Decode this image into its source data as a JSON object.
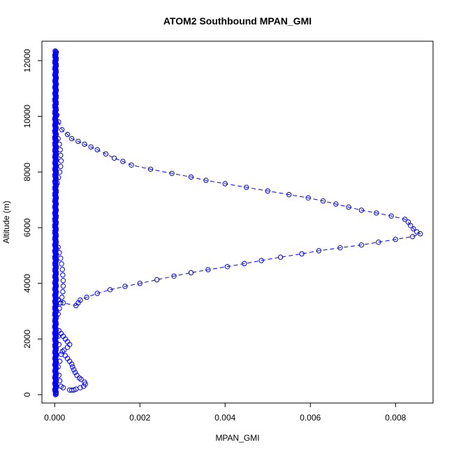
{
  "chart_data": {
    "type": "scatter",
    "title": "ATOM2 Southbound MPAN_GMI",
    "xlabel": "MPAN_GMI",
    "ylabel": "Altitude (m)",
    "xlim": [
      -0.0003,
      0.00888
    ],
    "ylim": [
      -300,
      12700
    ],
    "x_ticks": [
      0.0,
      0.002,
      0.004,
      0.006,
      0.008
    ],
    "x_tick_labels": [
      "0.000",
      "0.002",
      "0.004",
      "0.006",
      "0.008"
    ],
    "y_ticks": [
      0,
      2000,
      4000,
      6000,
      8000,
      10000,
      12000
    ],
    "y_tick_labels": [
      "0",
      "2000",
      "4000",
      "6000",
      "8000",
      "10000",
      "12000"
    ],
    "grid": false,
    "marker": "open-circle",
    "color": "#0000ff",
    "series": [
      {
        "name": "",
        "profile": "spike",
        "connected": true,
        "points": [
          [
            5e-05,
            10050
          ],
          [
            9e-05,
            9800
          ],
          [
            0.00017,
            9520
          ],
          [
            0.0003,
            9350
          ],
          [
            0.0004,
            9200
          ],
          [
            0.00055,
            9100
          ],
          [
            0.0007,
            9000
          ],
          [
            0.00085,
            8900
          ],
          [
            0.001,
            8800
          ],
          [
            0.0012,
            8650
          ],
          [
            0.0014,
            8500
          ],
          [
            0.0016,
            8380
          ],
          [
            0.0018,
            8250
          ],
          [
            0.00225,
            8100
          ],
          [
            0.00275,
            7950
          ],
          [
            0.0032,
            7820
          ],
          [
            0.00355,
            7700
          ],
          [
            0.004,
            7580
          ],
          [
            0.0045,
            7450
          ],
          [
            0.005,
            7320
          ],
          [
            0.0055,
            7190
          ],
          [
            0.00595,
            7070
          ],
          [
            0.0063,
            6960
          ],
          [
            0.0066,
            6850
          ],
          [
            0.0069,
            6740
          ],
          [
            0.0072,
            6630
          ],
          [
            0.00755,
            6530
          ],
          [
            0.0079,
            6420
          ],
          [
            0.00822,
            6300
          ],
          [
            0.0083,
            6200
          ],
          [
            0.00835,
            6080
          ],
          [
            0.00842,
            5960
          ],
          [
            0.0085,
            5850
          ],
          [
            0.00858,
            5780
          ],
          [
            0.0084,
            5680
          ],
          [
            0.008,
            5580
          ],
          [
            0.0076,
            5480
          ],
          [
            0.0072,
            5380
          ],
          [
            0.0067,
            5280
          ],
          [
            0.0062,
            5170
          ],
          [
            0.0058,
            5060
          ],
          [
            0.0053,
            4940
          ],
          [
            0.00485,
            4820
          ],
          [
            0.00445,
            4710
          ],
          [
            0.00405,
            4600
          ],
          [
            0.0036,
            4490
          ],
          [
            0.0032,
            4380
          ],
          [
            0.0028,
            4260
          ],
          [
            0.0024,
            4130
          ],
          [
            0.002,
            4000
          ],
          [
            0.00165,
            3890
          ],
          [
            0.0013,
            3770
          ],
          [
            0.001,
            3640
          ],
          [
            0.00075,
            3500
          ],
          [
            0.0006,
            3400
          ],
          [
            0.00055,
            3300
          ],
          [
            0.0005,
            3200
          ],
          [
            0.0002,
            3300
          ],
          [
            8e-05,
            3400
          ]
        ]
      },
      {
        "name": "",
        "profile": "near-zero-column",
        "connected": false,
        "x_range": [
          0.0,
          4e-05
        ],
        "y_range": [
          0,
          12350
        ]
      },
      {
        "name": "",
        "profile": "bulge",
        "connected": false,
        "points": [
          [
            8e-05,
            9200
          ],
          [
            0.00011,
            9000
          ],
          [
            0.00013,
            8800
          ],
          [
            0.00014,
            8600
          ],
          [
            0.00015,
            8400
          ],
          [
            0.00014,
            8200
          ],
          [
            0.00012,
            8000
          ],
          [
            9e-05,
            7800
          ],
          [
            6e-05,
            7600
          ],
          [
            8e-05,
            5300
          ],
          [
            0.00011,
            5100
          ],
          [
            0.00014,
            4900
          ],
          [
            0.00016,
            4700
          ],
          [
            0.00018,
            4500
          ],
          [
            0.00019,
            4300
          ],
          [
            0.0002,
            4100
          ],
          [
            0.0002,
            3900
          ],
          [
            0.00019,
            3700
          ],
          [
            0.00017,
            3500
          ],
          [
            0.00014,
            3300
          ],
          [
            0.00011,
            3100
          ],
          [
            8e-05,
            2900
          ]
        ]
      },
      {
        "name": "",
        "profile": "low-altitude",
        "connected": false,
        "points": [
          [
            0.0001,
            2300
          ],
          [
            0.00015,
            2200
          ],
          [
            0.0002,
            2100
          ],
          [
            0.00025,
            2000
          ],
          [
            0.0003,
            1900
          ],
          [
            0.00035,
            1800
          ],
          [
            0.0003,
            1700
          ],
          [
            0.00022,
            1600
          ],
          [
            0.00018,
            1550
          ],
          [
            0.00025,
            1400
          ],
          [
            0.0003,
            1300
          ],
          [
            0.00035,
            1200
          ],
          [
            0.0004,
            1100
          ],
          [
            0.00042,
            1000
          ],
          [
            0.00045,
            900
          ],
          [
            0.00048,
            800
          ],
          [
            0.00052,
            700
          ],
          [
            0.00058,
            600
          ],
          [
            0.00062,
            550
          ],
          [
            0.0007,
            450
          ],
          [
            0.00072,
            380
          ],
          [
            0.00068,
            300
          ],
          [
            0.0006,
            250
          ],
          [
            0.0005,
            200
          ],
          [
            0.00045,
            170
          ],
          [
            0.0004,
            160
          ],
          [
            0.00035,
            170
          ],
          [
            0.0002,
            250
          ],
          [
            0.00015,
            300
          ],
          [
            0.00012,
            500
          ],
          [
            0.0001,
            700
          ],
          [
            8e-05,
            1000
          ],
          [
            0.00012,
            1200
          ],
          [
            0.00015,
            1450
          ],
          [
            0.0001,
            1800
          ],
          [
            8e-05,
            2100
          ]
        ]
      }
    ]
  }
}
